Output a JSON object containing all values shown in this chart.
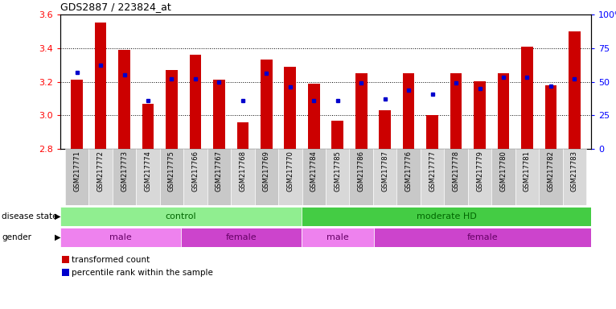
{
  "title": "GDS2887 / 223824_at",
  "samples": [
    "GSM217771",
    "GSM217772",
    "GSM217773",
    "GSM217774",
    "GSM217775",
    "GSM217766",
    "GSM217767",
    "GSM217768",
    "GSM217769",
    "GSM217770",
    "GSM217784",
    "GSM217785",
    "GSM217786",
    "GSM217787",
    "GSM217776",
    "GSM217777",
    "GSM217778",
    "GSM217779",
    "GSM217780",
    "GSM217781",
    "GSM217782",
    "GSM217783"
  ],
  "bar_values": [
    3.21,
    3.55,
    3.39,
    3.07,
    3.27,
    3.36,
    3.21,
    2.96,
    3.33,
    3.29,
    3.19,
    2.97,
    3.25,
    3.03,
    3.25,
    3.0,
    3.25,
    3.2,
    3.25,
    3.41,
    3.18,
    3.5
  ],
  "dot_percentile": [
    57,
    62,
    55,
    36,
    52,
    52,
    50,
    36,
    56,
    46,
    36,
    36,
    49,
    37,
    44,
    41,
    49,
    45,
    53,
    53,
    47,
    52
  ],
  "ylim": [
    2.8,
    3.6
  ],
  "yticks": [
    2.8,
    3.0,
    3.2,
    3.4,
    3.6
  ],
  "right_yticks": [
    0,
    25,
    50,
    75,
    100
  ],
  "bar_color": "#cc0000",
  "dot_color": "#0000cc",
  "disease_groups": [
    {
      "label": "control",
      "start": 0,
      "end": 10,
      "color": "#90ee90"
    },
    {
      "label": "moderate HD",
      "start": 10,
      "end": 22,
      "color": "#44cc44"
    }
  ],
  "gender_groups": [
    {
      "label": "male",
      "start": 0,
      "end": 5,
      "color": "#ee82ee"
    },
    {
      "label": "female",
      "start": 5,
      "end": 10,
      "color": "#cc44cc"
    },
    {
      "label": "male",
      "start": 10,
      "end": 13,
      "color": "#ee82ee"
    },
    {
      "label": "female",
      "start": 13,
      "end": 22,
      "color": "#cc44cc"
    }
  ],
  "legend_labels": [
    "transformed count",
    "percentile rank within the sample"
  ],
  "legend_colors": [
    "#cc0000",
    "#0000cc"
  ]
}
